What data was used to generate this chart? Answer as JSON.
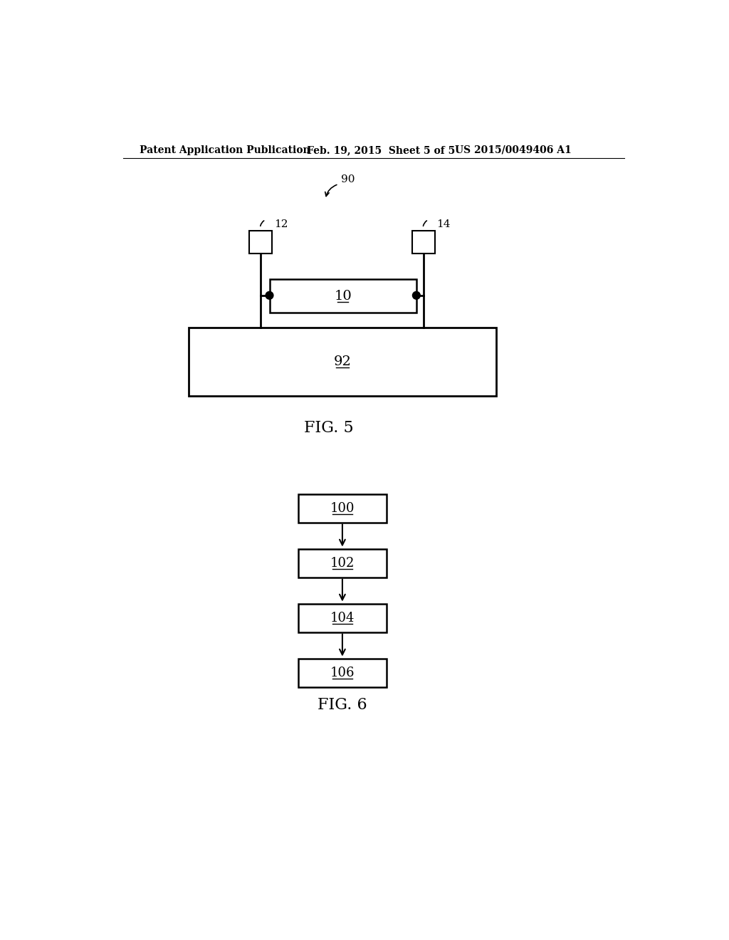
{
  "bg_color": "#ffffff",
  "header_left": "Patent Application Publication",
  "header_mid": "Feb. 19, 2015  Sheet 5 of 5",
  "header_right": "US 2015/0049406 A1",
  "fig5_label": "FIG. 5",
  "fig6_label": "FIG. 6",
  "label_90": "90",
  "label_12": "12",
  "label_14": "14",
  "label_10": "10",
  "label_92": "92",
  "label_100": "100",
  "label_102": "102",
  "label_104": "104",
  "label_106": "106"
}
